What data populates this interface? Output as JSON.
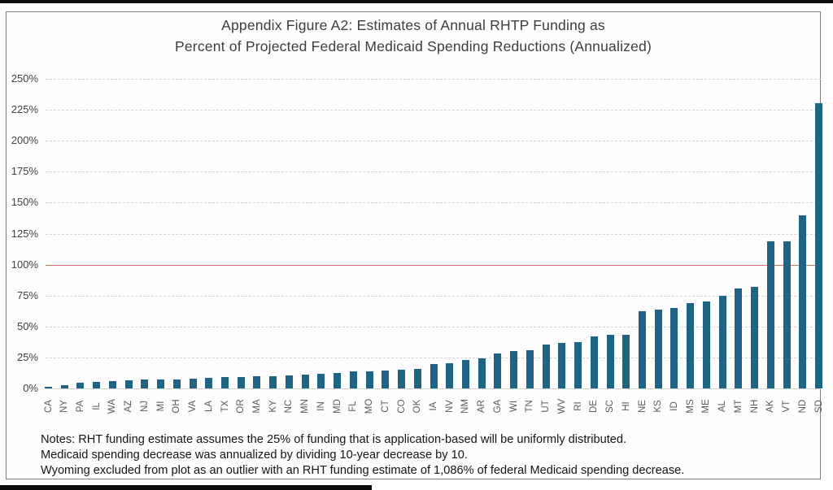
{
  "window": {
    "top_strip_color": "#0d0d0d",
    "bottom_strip_color": "#0d0d0d"
  },
  "header": {
    "title_line1": "Appendix Figure A2: Estimates of Annual RHTP Funding as",
    "title_line2": "Percent of Projected Federal Medicaid Spending Reductions (Annualized)"
  },
  "notes": {
    "line1": "Notes: RHT funding estimate assumes the 25% of funding that is application-based will be uniformly distributed.",
    "line2": "Medicaid spending decrease was annualized by dividing 10-year decrease by 10.",
    "line3": "Wyoming excluded from plot as an outlier with an RHT funding estimate of 1,086% of federal Medicaid spending decrease."
  },
  "chart_data": {
    "type": "bar",
    "title": "Appendix Figure A2: Estimates of Annual RHTP Funding as Percent of Projected Federal Medicaid Spending Reductions (Annualized)",
    "xlabel": "",
    "ylabel": "",
    "categories": [
      "CA",
      "NY",
      "PA",
      "IL",
      "WA",
      "AZ",
      "NJ",
      "MI",
      "OH",
      "VA",
      "LA",
      "TX",
      "OR",
      "MA",
      "KY",
      "NC",
      "MN",
      "IN",
      "MD",
      "FL",
      "MO",
      "CT",
      "CO",
      "OK",
      "IA",
      "NV",
      "NM",
      "AR",
      "GA",
      "WI",
      "TN",
      "UT",
      "WV",
      "RI",
      "DE",
      "SC",
      "HI",
      "NE",
      "KS",
      "ID",
      "MS",
      "ME",
      "AL",
      "MT",
      "NH",
      "AK",
      "VT",
      "ND",
      "SD"
    ],
    "values": [
      1.5,
      2.5,
      4.5,
      5,
      6,
      6.5,
      7,
      7,
      7.5,
      8,
      8.5,
      9,
      9.5,
      10,
      10,
      10.5,
      11,
      12,
      12.5,
      13.5,
      14,
      14.5,
      15,
      16,
      19.5,
      20.5,
      23,
      24,
      28,
      30,
      31,
      35.5,
      36.5,
      37.5,
      42,
      43.5,
      43.5,
      62.5,
      63.5,
      65,
      69,
      70,
      74.5,
      81,
      82,
      118.5,
      119,
      140,
      230
    ],
    "y_ticks": [
      "0%",
      "25%",
      "50%",
      "75%",
      "100%",
      "125%",
      "150%",
      "175%",
      "200%",
      "225%",
      "250%"
    ],
    "ylim": [
      0,
      250
    ],
    "grid": true,
    "legend": false,
    "bar_color": "#1f6385",
    "gridline_color": "#d4d4d4",
    "reference_line": {
      "value": 100,
      "color": "#dc6e60"
    }
  }
}
